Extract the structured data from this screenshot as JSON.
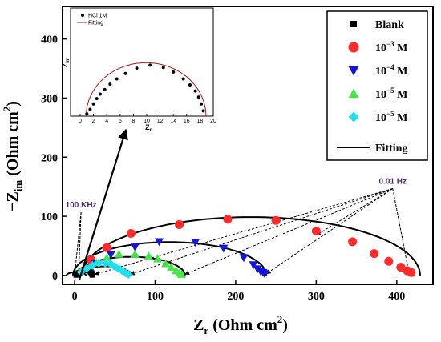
{
  "chart_data": [
    {
      "type": "scatter",
      "role": "main",
      "xlabel": {
        "main": "Z",
        "sub": "r",
        "unit": " (Ohm cm",
        "sup": "2",
        "close": ")"
      },
      "ylabel": {
        "pre": "−Z",
        "sub": "im",
        "unit": " (Ohm cm",
        "sup": "2",
        "close": ")"
      },
      "xlim": [
        -15,
        445
      ],
      "ylim": [
        -15,
        455
      ],
      "xticks": [
        0,
        100,
        200,
        300,
        400
      ],
      "yticks": [
        0,
        100,
        200,
        300,
        400
      ],
      "legend_position": "top-right",
      "series": [
        {
          "name": "Blank",
          "sup": "",
          "marker": "square",
          "color": "#000000",
          "x": [
            2,
            5,
            8,
            11,
            14,
            16,
            18,
            20,
            21,
            22
          ],
          "y": [
            1,
            4,
            7,
            9,
            9,
            9,
            8,
            6,
            4,
            1
          ]
        },
        {
          "name": "10",
          "sup": "−3",
          "unit": " M",
          "marker": "circle",
          "color": "#ff2a2a",
          "x": [
            20,
            40,
            70,
            130,
            190,
            250,
            300,
            345,
            372,
            390,
            405,
            413,
            418
          ],
          "y": [
            27,
            47,
            71,
            86,
            95,
            93,
            75,
            57,
            37,
            24,
            14,
            8,
            5
          ]
        },
        {
          "name": "10",
          "sup": "−4",
          "unit": " M",
          "marker": "triangle-down",
          "color": "#1515d8",
          "x": [
            25,
            45,
            75,
            105,
            150,
            185,
            210,
            222,
            227,
            231,
            234,
            236
          ],
          "y": [
            21,
            35,
            48,
            57,
            56,
            46,
            30,
            18,
            11,
            7,
            5,
            3
          ]
        },
        {
          "name": "10",
          "sup": "−5",
          "unit": " M",
          "marker": "triangle-up",
          "color": "#44e64a",
          "x": [
            27,
            40,
            55,
            75,
            92,
            103,
            113,
            120,
            126,
            130,
            133
          ],
          "y": [
            22,
            30,
            36,
            36,
            33,
            28,
            20,
            14,
            8,
            4,
            2
          ]
        },
        {
          "name": "10",
          "sup": "−5",
          "unit": " M",
          "marker": "diamond",
          "color": "#22e0ea",
          "x": [
            8,
            15,
            22,
            30,
            38,
            45,
            50,
            55,
            60,
            64,
            67
          ],
          "y": [
            6,
            12,
            17,
            21,
            21,
            19,
            15,
            11,
            7,
            4,
            2
          ]
        }
      ],
      "fits": [
        {
          "center": 2,
          "radius": 12
        },
        {
          "center": 219,
          "radius": 210
        },
        {
          "center": 118,
          "radius": 120
        },
        {
          "center": 70,
          "radius": 67
        },
        {
          "center": 38,
          "radius": 33
        }
      ],
      "fit_label": "Fitting",
      "annotations": [
        {
          "text": "100 KHz",
          "color": "#4b2a7a",
          "at": [
            8,
            115
          ],
          "targets": [
            [
              0,
              0
            ],
            [
              5,
              2
            ]
          ]
        },
        {
          "text": "0.01 Hz",
          "color": "#4b2a7a",
          "at": [
            395,
            155
          ],
          "targets": [
            [
              415,
              5
            ],
            [
              238,
              3
            ],
            [
              137,
              2
            ],
            [
              69,
              2
            ],
            [
              25,
              2
            ],
            [
              300,
              68
            ]
          ]
        }
      ]
    },
    {
      "type": "scatter",
      "role": "inset",
      "xlabel": {
        "main": "Z",
        "sub": "r"
      },
      "ylabel": {
        "main": "Z",
        "sub": "im"
      },
      "xlim": [
        0,
        20
      ],
      "ylim": [
        0,
        10
      ],
      "xticks": [
        0,
        2,
        4,
        6,
        8,
        10,
        12,
        14,
        16,
        18,
        20
      ],
      "legend": [
        {
          "name": "HCl 1M",
          "marker": "circle",
          "color": "#000000"
        },
        {
          "name": "Fitting",
          "marker": "line",
          "color": "#a81818"
        }
      ],
      "fit": {
        "center": 9.9,
        "radius": 9.0,
        "vscale": 0.78
      },
      "x": [
        1.0,
        1.5,
        2.0,
        2.5,
        3.0,
        3.7,
        4.5,
        5.5,
        6.8,
        8.5,
        10.5,
        12.5,
        14.0,
        15.5,
        16.5,
        17.3,
        17.8,
        18.2,
        18.5
      ],
      "y": [
        0.3,
        0.9,
        1.6,
        2.3,
        2.9,
        3.5,
        4.2,
        4.9,
        5.6,
        6.3,
        6.7,
        6.4,
        5.8,
        4.9,
        4.1,
        3.3,
        2.5,
        1.6,
        0.7
      ]
    }
  ]
}
